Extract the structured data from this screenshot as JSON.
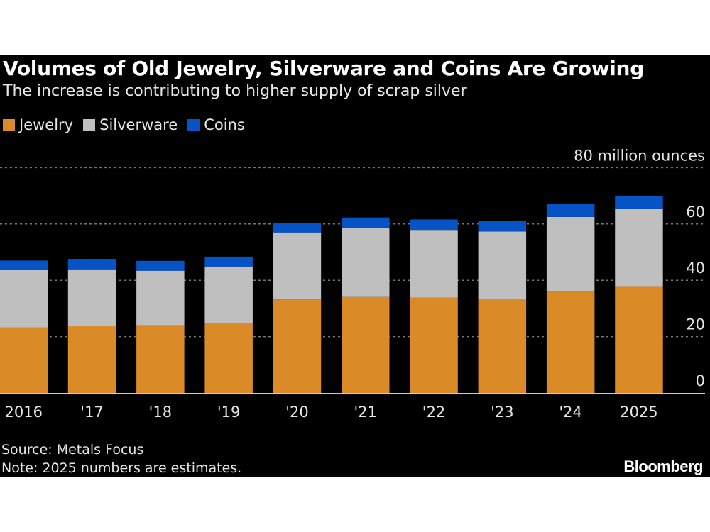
{
  "chart_data": {
    "type": "bar",
    "stacked": true,
    "title": "Volumes of Old Jewelry, Silverware and Coins Are Growing",
    "subtitle": "The increase is contributing to higher supply of scrap silver",
    "categories": [
      "2016",
      "'17",
      "'18",
      "'19",
      "'20",
      "'21",
      "'22",
      "'23",
      "'24",
      "2025"
    ],
    "series": [
      {
        "name": "Jewelry",
        "color": "#DB8A28",
        "values": [
          23.2,
          23.7,
          24.0,
          24.8,
          33.2,
          34.3,
          33.8,
          33.5,
          36.2,
          37.9
        ]
      },
      {
        "name": "Silverware",
        "color": "#BFBFBF",
        "values": [
          20.5,
          20.2,
          19.4,
          20.1,
          23.8,
          24.4,
          24.1,
          23.8,
          26.3,
          27.6
        ]
      },
      {
        "name": "Coins",
        "color": "#0553C5",
        "values": [
          3.3,
          3.7,
          3.5,
          3.5,
          3.4,
          3.6,
          3.7,
          3.7,
          4.5,
          4.5
        ]
      }
    ],
    "yticks": [
      "0",
      "20",
      "40",
      "60",
      "80 million ounces"
    ],
    "ytick_values": [
      0,
      20,
      40,
      60,
      80
    ],
    "ylim": [
      0,
      80
    ],
    "ylabel": "",
    "xlabel": "",
    "grid": true,
    "legend": "top-left",
    "source": "Source: Metals Focus",
    "note": "Note: 2025 numbers are estimates."
  },
  "brand": "Bloomberg"
}
